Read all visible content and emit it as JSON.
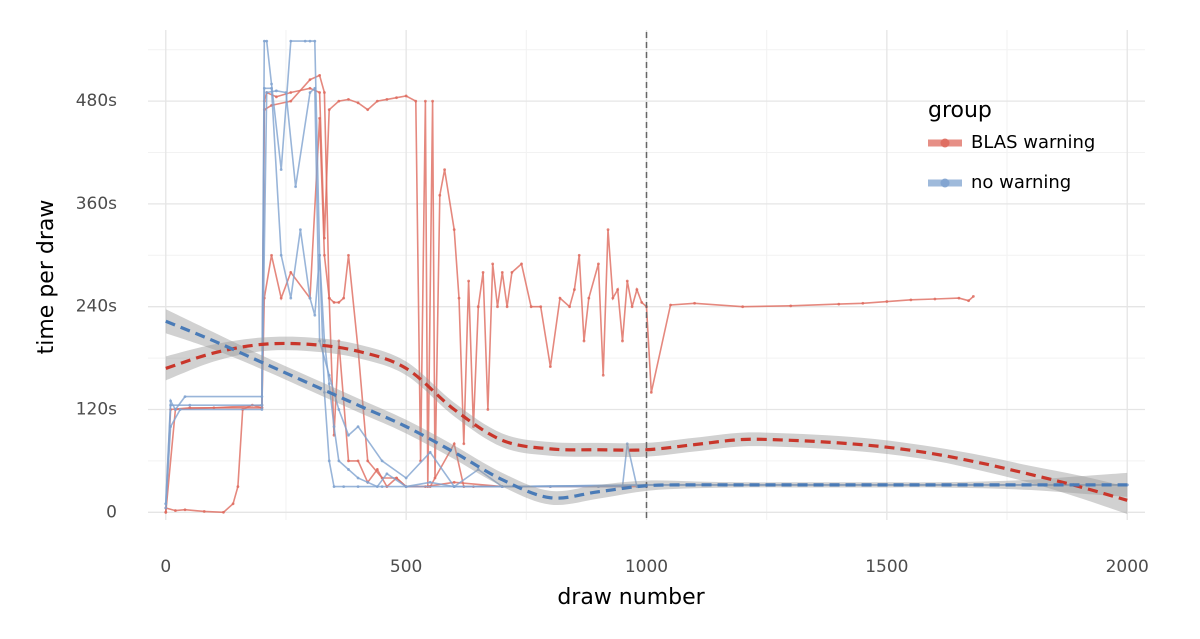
{
  "chart_data": {
    "type": "line",
    "x_label": "draw number",
    "y_label": "time per draw",
    "legend_title": "group",
    "legend_position": "top-right",
    "grid": true,
    "xlim": [
      -37,
      2037
    ],
    "ylim": [
      -9,
      563
    ],
    "xticks": [
      0,
      500,
      1000,
      1500,
      2000
    ],
    "yticks": [
      0,
      {
        "value": 120,
        "label": "120s"
      },
      {
        "value": 240,
        "label": "240s"
      },
      {
        "value": 360,
        "label": "360s"
      },
      {
        "value": 480,
        "label": "480s"
      }
    ],
    "x_minor_ticks": [
      250,
      750,
      1250,
      1750
    ],
    "y_minor_ticks": [
      60,
      180,
      300,
      420,
      540
    ],
    "vline": 1000,
    "series": [
      {
        "name": "BLAS warning",
        "color": "#de6a5e",
        "smooth_color": "#c9362b",
        "traces": [
          {
            "x": [
              0,
              20,
              40,
              80,
              120,
              140,
              150,
              160,
              180,
              200,
              205,
              210,
              230,
              260,
              300,
              320,
              330,
              340,
              360,
              380,
              400,
              420,
              440,
              460,
              480,
              500,
              520,
              530,
              540,
              545,
              555,
              560,
              570,
              580,
              600,
              610,
              620,
              630,
              640,
              650,
              660,
              670,
              680,
              690,
              700,
              710,
              720,
              740,
              760,
              780,
              800,
              820,
              840,
              850,
              860,
              870,
              880,
              900,
              910,
              920,
              930,
              940,
              950,
              960,
              970,
              980,
              990,
              1000,
              1010,
              1050,
              1100,
              1200,
              1300,
              1400,
              1450,
              1500,
              1550,
              1600,
              1650,
              1670,
              1680
            ],
            "values": [
              5,
              2,
              3,
              1,
              0,
              10,
              30,
              120,
              125,
              122,
              480,
              490,
              485,
              490,
              495,
              490,
              320,
              470,
              480,
              482,
              478,
              470,
              480,
              482,
              484,
              486,
              480,
              60,
              480,
              30,
              480,
              40,
              370,
              400,
              330,
              250,
              80,
              270,
              100,
              240,
              280,
              120,
              290,
              240,
              280,
              240,
              280,
              290,
              240,
              240,
              170,
              250,
              240,
              260,
              300,
              200,
              250,
              290,
              160,
              330,
              250,
              260,
              200,
              270,
              240,
              260,
              245,
              240,
              140,
              242,
              244,
              240,
              241,
              243,
              244,
              246,
              248,
              249,
              250,
              247,
              252
            ]
          },
          {
            "x": [
              0,
              20,
              100,
              200,
              205,
              220,
              260,
              300,
              320,
              330,
              340,
              350,
              360,
              380,
              400,
              420,
              440,
              460,
              480,
              500,
              540,
              600,
              700,
              800,
              900,
              1000
            ],
            "values": [
              0,
              120,
              122,
              125,
              470,
              475,
              480,
              505,
              510,
              490,
              250,
              90,
              200,
              60,
              60,
              35,
              50,
              30,
              40,
              30,
              30,
              35,
              30,
              30,
              30,
              30
            ]
          },
          {
            "x": [
              0,
              10,
              50,
              200,
              205,
              220,
              240,
              260,
              300,
              320,
              330,
              340,
              350,
              360,
              370,
              380,
              400,
              420,
              450,
              480,
              500,
              550,
              600,
              620,
              640,
              700
            ],
            "values": [
              0,
              120,
              122,
              122,
              250,
              300,
              250,
              280,
              250,
              460,
              300,
              250,
              245,
              245,
              250,
              300,
              190,
              60,
              40,
              40,
              30,
              30,
              80,
              30,
              30,
              30
            ]
          }
        ],
        "smooth": {
          "x": [
            0,
            100,
            200,
            300,
            400,
            500,
            600,
            700,
            800,
            900,
            1000,
            1100,
            1200,
            1300,
            1400,
            1500,
            1600,
            1700,
            1800,
            1900,
            2000
          ],
          "values": [
            168,
            186,
            196,
            196,
            188,
            168,
            120,
            84,
            74,
            73,
            73,
            79,
            85,
            84,
            81,
            76,
            68,
            57,
            44,
            30,
            14
          ],
          "lower": [
            154,
            176,
            188,
            188,
            180,
            160,
            112,
            76,
            66,
            65,
            65,
            71,
            77,
            76,
            73,
            68,
            60,
            48,
            34,
            17,
            -2
          ],
          "upper": [
            182,
            196,
            204,
            204,
            196,
            176,
            128,
            92,
            82,
            81,
            81,
            87,
            93,
            92,
            89,
            84,
            76,
            66,
            54,
            43,
            30
          ]
        }
      },
      {
        "name": "no warning",
        "color": "#7fa3cf",
        "smooth_color": "#4a7bb7",
        "traces": [
          {
            "x": [
              0,
              10,
              20,
              40,
              200,
              205,
              210,
              220,
              240,
              260,
              290,
              300,
              310,
              320,
              330,
              340,
              350,
              360,
              380,
              400,
              420,
              440,
              460,
              500,
              550,
              600,
              700,
              800,
              900,
              950,
              960,
              980,
              1000,
              1200,
              1500,
              2000
            ],
            "values": [
              10,
              130,
              120,
              135,
              135,
              550,
              550,
              500,
              400,
              550,
              550,
              550,
              550,
              300,
              200,
              150,
              100,
              60,
              50,
              40,
              35,
              30,
              45,
              30,
              35,
              30,
              30,
              30,
              30,
              30,
              80,
              30,
              32,
              32,
              32,
              32
            ]
          },
          {
            "x": [
              0,
              10,
              50,
              200,
              205,
              220,
              240,
              260,
              280,
              300,
              310,
              320,
              330,
              340,
              350,
              370,
              400,
              450,
              500,
              600,
              700,
              1000,
              1500,
              2000
            ],
            "values": [
              10,
              125,
              125,
              125,
              495,
              495,
              300,
              250,
              330,
              250,
              230,
              300,
              140,
              60,
              30,
              30,
              30,
              30,
              30,
              30,
              30,
              32,
              32,
              32
            ]
          },
          {
            "x": [
              0,
              10,
              30,
              200,
              210,
              230,
              250,
              270,
              300,
              310,
              320,
              340,
              360,
              380,
              400,
              450,
              500,
              550,
              600,
              650,
              700,
              1000,
              2000
            ],
            "values": [
              5,
              100,
              120,
              120,
              490,
              492,
              490,
              380,
              490,
              495,
              200,
              160,
              120,
              90,
              100,
              60,
              40,
              70,
              30,
              50,
              30,
              32,
              32
            ]
          }
        ],
        "smooth": {
          "x": [
            0,
            100,
            200,
            300,
            400,
            500,
            600,
            700,
            800,
            900,
            1000,
            1100,
            1200,
            1300,
            1400,
            1500,
            1600,
            1700,
            1800,
            1900,
            2000
          ],
          "values": [
            223,
            200,
            175,
            150,
            125,
            100,
            70,
            38,
            17,
            24,
            31,
            32,
            32,
            32,
            32,
            32,
            32,
            32,
            32,
            32,
            32
          ],
          "lower": [
            209,
            190,
            167,
            142,
            117,
            92,
            62,
            30,
            9,
            16,
            25,
            28,
            29,
            29,
            29,
            29,
            29,
            28,
            26,
            22,
            18
          ],
          "upper": [
            237,
            210,
            183,
            158,
            133,
            108,
            78,
            46,
            25,
            32,
            37,
            36,
            35,
            35,
            35,
            35,
            35,
            36,
            38,
            42,
            46
          ]
        }
      }
    ]
  }
}
